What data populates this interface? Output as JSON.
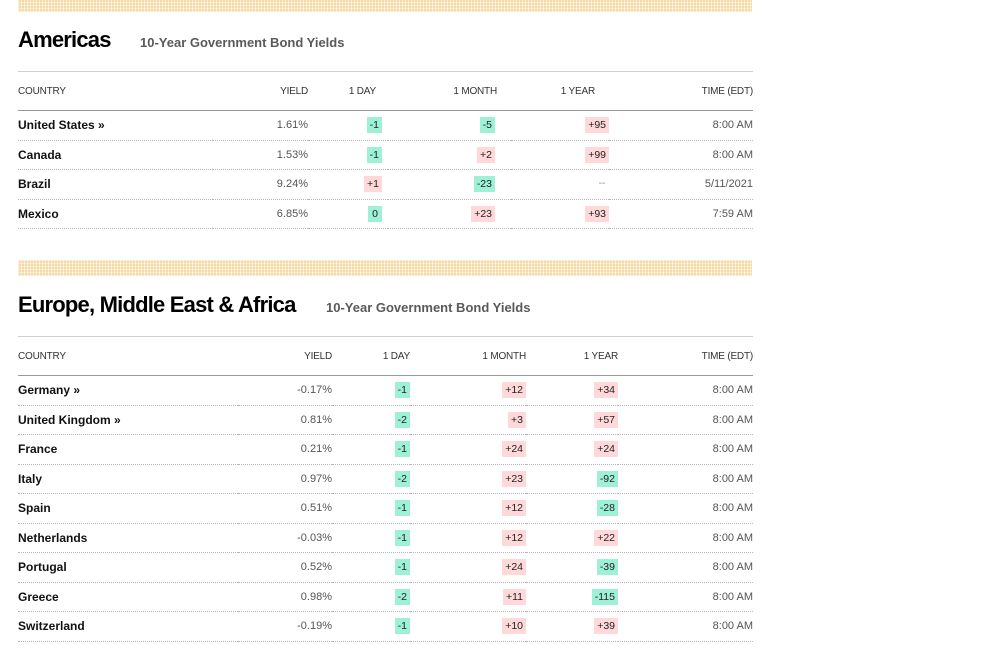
{
  "americas": {
    "title": "Americas",
    "subtitle": "10-Year Government Bond Yields",
    "headers": {
      "country": "COUNTRY",
      "yield": "YIELD",
      "day": "1 DAY",
      "month": "1 MONTH",
      "year": "1 YEAR",
      "time": "TIME (EDT)"
    },
    "rows": [
      {
        "country": "United States »",
        "yield": "1.61%",
        "day": "-1",
        "day_dir": "neg",
        "month": "-5",
        "month_dir": "neg",
        "year": "+95",
        "year_dir": "pos",
        "time": "8:00 AM"
      },
      {
        "country": "Canada",
        "yield": "1.53%",
        "day": "-1",
        "day_dir": "neg",
        "month": "+2",
        "month_dir": "pos",
        "year": "+99",
        "year_dir": "pos",
        "time": "8:00 AM"
      },
      {
        "country": "Brazil",
        "yield": "9.24%",
        "day": "+1",
        "day_dir": "pos",
        "month": "-23",
        "month_dir": "neg",
        "year": "--",
        "year_dir": "none",
        "time": "5/11/2021"
      },
      {
        "country": "Mexico",
        "yield": "6.85%",
        "day": "0",
        "day_dir": "neutral",
        "month": "+23",
        "month_dir": "pos",
        "year": "+93",
        "year_dir": "pos",
        "time": "7:59 AM"
      }
    ]
  },
  "emea": {
    "title": "Europe, Middle East & Africa",
    "subtitle": "10-Year Government Bond Yields",
    "headers": {
      "country": "COUNTRY",
      "yield": "YIELD",
      "day": "1 DAY",
      "month": "1 MONTH",
      "year": "1 YEAR",
      "time": "TIME (EDT)"
    },
    "rows": [
      {
        "country": "Germany »",
        "yield": "-0.17%",
        "day": "-1",
        "day_dir": "neg",
        "month": "+12",
        "month_dir": "pos",
        "year": "+34",
        "year_dir": "pos",
        "time": "8:00 AM"
      },
      {
        "country": "United Kingdom »",
        "yield": "0.81%",
        "day": "-2",
        "day_dir": "neg",
        "month": "+3",
        "month_dir": "pos",
        "year": "+57",
        "year_dir": "pos",
        "time": "8:00 AM"
      },
      {
        "country": "France",
        "yield": "0.21%",
        "day": "-1",
        "day_dir": "neg",
        "month": "+24",
        "month_dir": "pos",
        "year": "+24",
        "year_dir": "pos",
        "time": "8:00 AM"
      },
      {
        "country": "Italy",
        "yield": "0.97%",
        "day": "-2",
        "day_dir": "neg",
        "month": "+23",
        "month_dir": "pos",
        "year": "-92",
        "year_dir": "neg",
        "time": "8:00 AM"
      },
      {
        "country": "Spain",
        "yield": "0.51%",
        "day": "-1",
        "day_dir": "neg",
        "month": "+12",
        "month_dir": "pos",
        "year": "-28",
        "year_dir": "neg",
        "time": "8:00 AM"
      },
      {
        "country": "Netherlands",
        "yield": "-0.03%",
        "day": "-1",
        "day_dir": "neg",
        "month": "+12",
        "month_dir": "pos",
        "year": "+22",
        "year_dir": "pos",
        "time": "8:00 AM"
      },
      {
        "country": "Portugal",
        "yield": "0.52%",
        "day": "-1",
        "day_dir": "neg",
        "month": "+24",
        "month_dir": "pos",
        "year": "-39",
        "year_dir": "neg",
        "time": "8:00 AM"
      },
      {
        "country": "Greece",
        "yield": "0.98%",
        "day": "-2",
        "day_dir": "neg",
        "month": "+11",
        "month_dir": "pos",
        "year": "-115",
        "year_dir": "neg",
        "time": "8:00 AM"
      },
      {
        "country": "Switzerland",
        "yield": "-0.19%",
        "day": "-1",
        "day_dir": "neg",
        "month": "+10",
        "month_dir": "pos",
        "year": "+39",
        "year_dir": "pos",
        "time": "8:00 AM"
      }
    ]
  },
  "colors": {
    "negative_chip": "#9ef0d6",
    "positive_chip": "#ffd9d9",
    "stripe": "#f3d9a4"
  }
}
